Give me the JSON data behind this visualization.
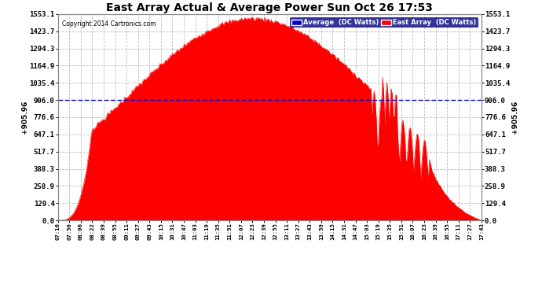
{
  "title": "East Array Actual & Average Power Sun Oct 26 17:53",
  "copyright": "Copyright 2014 Cartronics.com",
  "average_value": 905.96,
  "y_ticks": [
    0.0,
    129.4,
    258.9,
    388.3,
    517.7,
    647.1,
    776.6,
    906.0,
    1035.4,
    1164.9,
    1294.3,
    1423.7,
    1553.1
  ],
  "ymax": 1553.1,
  "background_color": "#ffffff",
  "plot_bg_color": "#ffffff",
  "grid_color": "#bbbbbb",
  "fill_color": "#ff0000",
  "line_color": "#ff0000",
  "average_line_color": "#0000cc",
  "legend_avg_bg": "#0000cc",
  "legend_east_bg": "#ff0000",
  "x_labels": [
    "07:16",
    "07:50",
    "08:06",
    "08:22",
    "08:39",
    "08:55",
    "09:11",
    "09:27",
    "09:43",
    "10:15",
    "10:31",
    "10:47",
    "11:03",
    "11:19",
    "11:35",
    "11:51",
    "12:07",
    "12:23",
    "12:39",
    "12:55",
    "13:11",
    "13:27",
    "13:43",
    "13:59",
    "14:15",
    "14:31",
    "14:47",
    "15:03",
    "15:19",
    "15:35",
    "15:51",
    "16:07",
    "16:23",
    "16:39",
    "16:55",
    "17:11",
    "17:27",
    "17:43"
  ],
  "num_points": 400
}
